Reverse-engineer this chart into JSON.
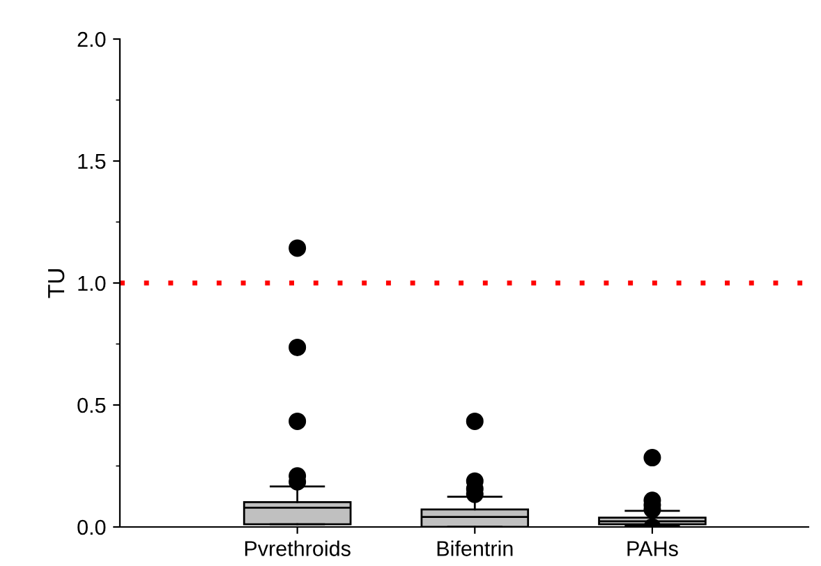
{
  "chart_data": {
    "type": "box",
    "ylabel": "TU",
    "categories": [
      "Pvrethroids",
      "Bifentrin",
      "PAHs"
    ],
    "boxes": [
      {
        "low": 0.011,
        "q1": 0.011,
        "median": 0.079,
        "q3": 0.102,
        "high": 0.166,
        "outliers": [
          1.143,
          0.736,
          0.433,
          0.209,
          0.185
        ]
      },
      {
        "low": 0,
        "q1": 0,
        "median": 0.041,
        "q3": 0.072,
        "high": 0.124,
        "outliers": [
          0.433,
          0.188,
          0.156,
          0.134
        ]
      },
      {
        "low": 0.006,
        "q1": 0.011,
        "median": 0.023,
        "q3": 0.038,
        "high": 0.066,
        "outliers": [
          0.284,
          0.109,
          0.09,
          0.072,
          0
        ]
      }
    ],
    "color": "#c0c0c0",
    "ylim": [
      0,
      2
    ],
    "yticks": [
      {
        "value": 0,
        "label": "0.0"
      },
      0.5,
      {
        "value": 1,
        "label": "1.0"
      },
      1.5,
      {
        "value": 2,
        "label": "2.0"
      }
    ],
    "ref_lines": [
      {
        "axis": "y",
        "value": 1.0,
        "label": null,
        "color": "#ff0000",
        "line_style": "dotted"
      }
    ],
    "grid": false,
    "legend": false
  }
}
